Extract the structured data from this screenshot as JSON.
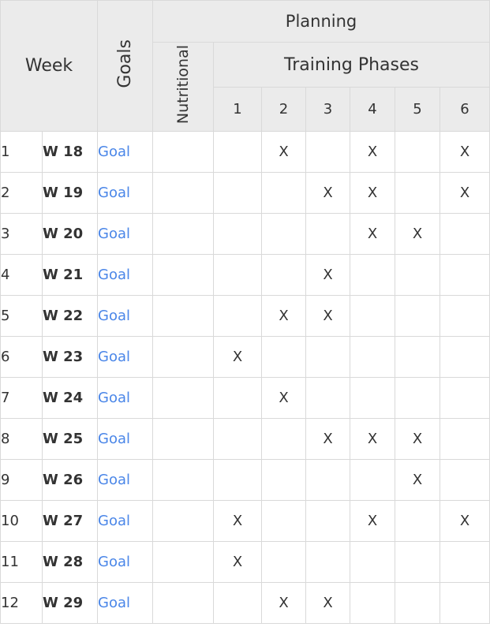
{
  "header": {
    "week": "Week",
    "goals": "Goals",
    "planning": "Planning",
    "nutritional": "Nutritional",
    "training_phases": "Training Phases",
    "phase_numbers": [
      "1",
      "2",
      "3",
      "4",
      "5",
      "6"
    ]
  },
  "rows": [
    {
      "index": "1",
      "week": "W 18",
      "goal": "Goal",
      "nutritional": "",
      "phases": [
        "",
        "X",
        "",
        "X",
        "",
        "X"
      ]
    },
    {
      "index": "2",
      "week": "W 19",
      "goal": "Goal",
      "nutritional": "",
      "phases": [
        "",
        "",
        "X",
        "X",
        "",
        "X"
      ]
    },
    {
      "index": "3",
      "week": "W 20",
      "goal": "Goal",
      "nutritional": "",
      "phases": [
        "",
        "",
        "",
        "X",
        "X",
        ""
      ]
    },
    {
      "index": "4",
      "week": "W 21",
      "goal": "Goal",
      "nutritional": "",
      "phases": [
        "",
        "",
        "X",
        "",
        "",
        ""
      ]
    },
    {
      "index": "5",
      "week": "W 22",
      "goal": "Goal",
      "nutritional": "",
      "phases": [
        "",
        "X",
        "X",
        "",
        "",
        ""
      ]
    },
    {
      "index": "6",
      "week": "W 23",
      "goal": "Goal",
      "nutritional": "",
      "phases": [
        "X",
        "",
        "",
        "",
        "",
        ""
      ]
    },
    {
      "index": "7",
      "week": "W 24",
      "goal": "Goal",
      "nutritional": "",
      "phases": [
        "",
        "X",
        "",
        "",
        "",
        ""
      ]
    },
    {
      "index": "8",
      "week": "W 25",
      "goal": "Goal",
      "nutritional": "",
      "phases": [
        "",
        "",
        "X",
        "X",
        "X",
        ""
      ]
    },
    {
      "index": "9",
      "week": "W 26",
      "goal": "Goal",
      "nutritional": "",
      "phases": [
        "",
        "",
        "",
        "",
        "X",
        ""
      ]
    },
    {
      "index": "10",
      "week": "W 27",
      "goal": "Goal",
      "nutritional": "",
      "phases": [
        "X",
        "",
        "",
        "X",
        "",
        "X"
      ]
    },
    {
      "index": "11",
      "week": "W 28",
      "goal": "Goal",
      "nutritional": "",
      "phases": [
        "X",
        "",
        "",
        "",
        "",
        ""
      ]
    },
    {
      "index": "12",
      "week": "W 29",
      "goal": "Goal",
      "nutritional": "",
      "phases": [
        "",
        "X",
        "X",
        "",
        "",
        ""
      ]
    }
  ],
  "colors": {
    "header_bg": "#ebebeb",
    "border": "#d9d9d9",
    "text": "#333333",
    "link": "#4a86e8"
  }
}
